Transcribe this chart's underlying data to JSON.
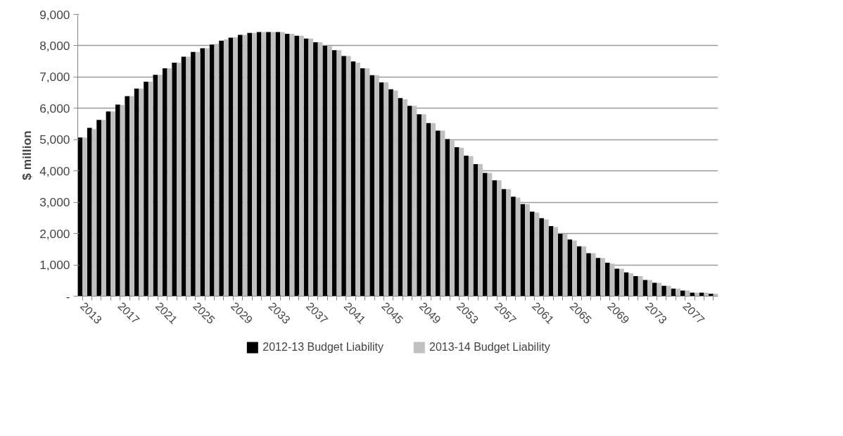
{
  "chart_data": {
    "type": "bar",
    "ylabel": "$ million",
    "categories": [
      "2013",
      null,
      null,
      null,
      "2017",
      null,
      null,
      null,
      "2021",
      null,
      null,
      null,
      "2025",
      null,
      null,
      null,
      "2029",
      null,
      null,
      null,
      "2033",
      null,
      null,
      null,
      "2037",
      null,
      null,
      null,
      "2041",
      null,
      null,
      null,
      "2045",
      null,
      null,
      null,
      "2049",
      null,
      null,
      null,
      "2053",
      null,
      null,
      null,
      "2057",
      null,
      null,
      null,
      "2061",
      null,
      null,
      null,
      "2065",
      null,
      null,
      null,
      "2069",
      null,
      null,
      null,
      "2073",
      null,
      null,
      null,
      "2077",
      null,
      null,
      null
    ],
    "series": [
      {
        "name": "2012-13 Budget Liability",
        "color": "#000000",
        "values": [
          5070,
          5380,
          5630,
          5900,
          6120,
          6390,
          6630,
          6850,
          7070,
          7280,
          7460,
          7650,
          7800,
          7920,
          8040,
          8160,
          8260,
          8350,
          8410,
          8440,
          8440,
          8440,
          8380,
          8320,
          8230,
          8110,
          8000,
          7860,
          7670,
          7500,
          7280,
          7060,
          6830,
          6610,
          6330,
          6080,
          5810,
          5530,
          5290,
          5020,
          4760,
          4490,
          4220,
          3940,
          3700,
          3420,
          3180,
          2940,
          2700,
          2490,
          2240,
          1990,
          1810,
          1590,
          1370,
          1220,
          1070,
          880,
          760,
          640,
          520,
          430,
          330,
          240,
          180,
          110,
          110,
          80
        ]
      },
      {
        "name": "2013-14 Budget Liability",
        "color": "#c0c0c0",
        "values": [
          5070,
          5340,
          5630,
          5900,
          6110,
          6390,
          6630,
          6850,
          7070,
          7280,
          7460,
          7650,
          7800,
          7920,
          8060,
          8200,
          8270,
          8350,
          8410,
          8440,
          8440,
          8440,
          8380,
          8320,
          8230,
          8110,
          8000,
          7860,
          7670,
          7460,
          7280,
          7060,
          6830,
          6570,
          6290,
          6080,
          5810,
          5530,
          5290,
          4970,
          4740,
          4470,
          4220,
          3940,
          3700,
          3420,
          3150,
          2940,
          2670,
          2450,
          2210,
          1990,
          1780,
          1590,
          1370,
          1220,
          1040,
          880,
          730,
          640,
          520,
          430,
          330,
          240,
          180,
          110,
          110,
          80
        ]
      }
    ],
    "ylim": [
      0,
      9000
    ],
    "yticks": [
      {
        "value": 0,
        "label": "-"
      },
      {
        "value": 1000,
        "label": "1,000"
      },
      {
        "value": 2000,
        "label": "2,000"
      },
      {
        "value": 3000,
        "label": "3,000"
      },
      {
        "value": 4000,
        "label": "4,000"
      },
      {
        "value": 5000,
        "label": "5,000"
      },
      {
        "value": 6000,
        "label": "6,000"
      },
      {
        "value": 7000,
        "label": "7,000"
      },
      {
        "value": 8000,
        "label": "8,000"
      },
      {
        "value": 9000,
        "label": "9,000"
      }
    ],
    "grid": "y",
    "legend": "bottom"
  }
}
